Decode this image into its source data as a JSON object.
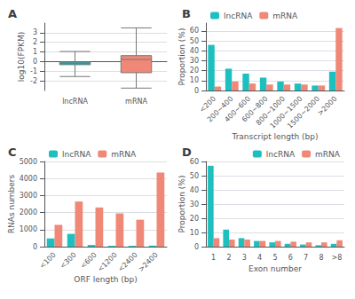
{
  "chart_data": [
    {
      "type": "box",
      "title": "A",
      "categories": [
        "lncRNA",
        "mRNA"
      ],
      "values": [
        [
          -1.55,
          -0.32,
          -0.18,
          -0.05,
          1.05
        ],
        [
          -2.75,
          -1.15,
          0.22,
          0.62,
          3.5
        ]
      ],
      "colors": [
        "#1DBFBF",
        "#F08878"
      ],
      "ylabel": "log10(FPKM)",
      "ylim": [
        -3,
        4
      ],
      "yticks": [
        -2,
        -1,
        0,
        1,
        2,
        3
      ],
      "grid": true
    },
    {
      "type": "bar",
      "title": "B",
      "categories": [
        "<200",
        "200~400",
        "400~600",
        "600~800",
        "800~1000",
        "1000~1500",
        "1500~2000",
        ">2000"
      ],
      "series": [
        {
          "name": "lncRNA",
          "color": "#1DBFBF",
          "values": [
            46,
            22,
            17,
            13,
            9,
            7,
            5,
            19
          ]
        },
        {
          "name": "mRNA",
          "color": "#F08878",
          "values": [
            4,
            9,
            7,
            6,
            6,
            6,
            5,
            63
          ]
        }
      ],
      "xlabel": "Transcript length (bp)",
      "ylabel": "Proportion (%)",
      "ylim": [
        0,
        68
      ],
      "yticks": [
        0,
        10,
        20,
        30,
        40,
        50,
        60
      ],
      "grid": true,
      "legend": "upper left"
    },
    {
      "type": "bar",
      "title": "C",
      "categories": [
        "<100",
        "<300",
        "<600",
        "<1200",
        "<2400",
        ">2400"
      ],
      "series": [
        {
          "name": "lncRNA",
          "color": "#1DBFBF",
          "values": [
            480,
            750,
            100,
            50,
            50,
            60
          ]
        },
        {
          "name": "mRNA",
          "color": "#F08878",
          "values": [
            1280,
            2650,
            2300,
            1950,
            1580,
            4350
          ]
        }
      ],
      "xlabel": "ORF length (bp)",
      "ylabel": "RNAs numbers",
      "ylim": [
        0,
        5000
      ],
      "yticks": [
        0,
        1000,
        2000,
        3000,
        4000,
        5000
      ],
      "grid": true,
      "legend": "upper left"
    },
    {
      "type": "bar",
      "title": "D",
      "categories": [
        "1",
        "2",
        "3",
        "4",
        "5",
        "6",
        "7",
        "8",
        ">8"
      ],
      "series": [
        {
          "name": "lncRNA",
          "color": "#1DBFBF",
          "values": [
            57,
            12,
            6,
            4,
            3,
            2,
            1.5,
            1,
            2
          ]
        },
        {
          "name": "mRNA",
          "color": "#F08878",
          "values": [
            6,
            5,
            5,
            4,
            4,
            3.5,
            3,
            3,
            4.5
          ]
        }
      ],
      "xlabel": "Exon number",
      "ylabel": "Proportion (%)",
      "ylim": [
        0,
        60
      ],
      "yticks": [
        0,
        10,
        20,
        30,
        40,
        50,
        60
      ],
      "grid": true,
      "legend": "upper right"
    }
  ]
}
